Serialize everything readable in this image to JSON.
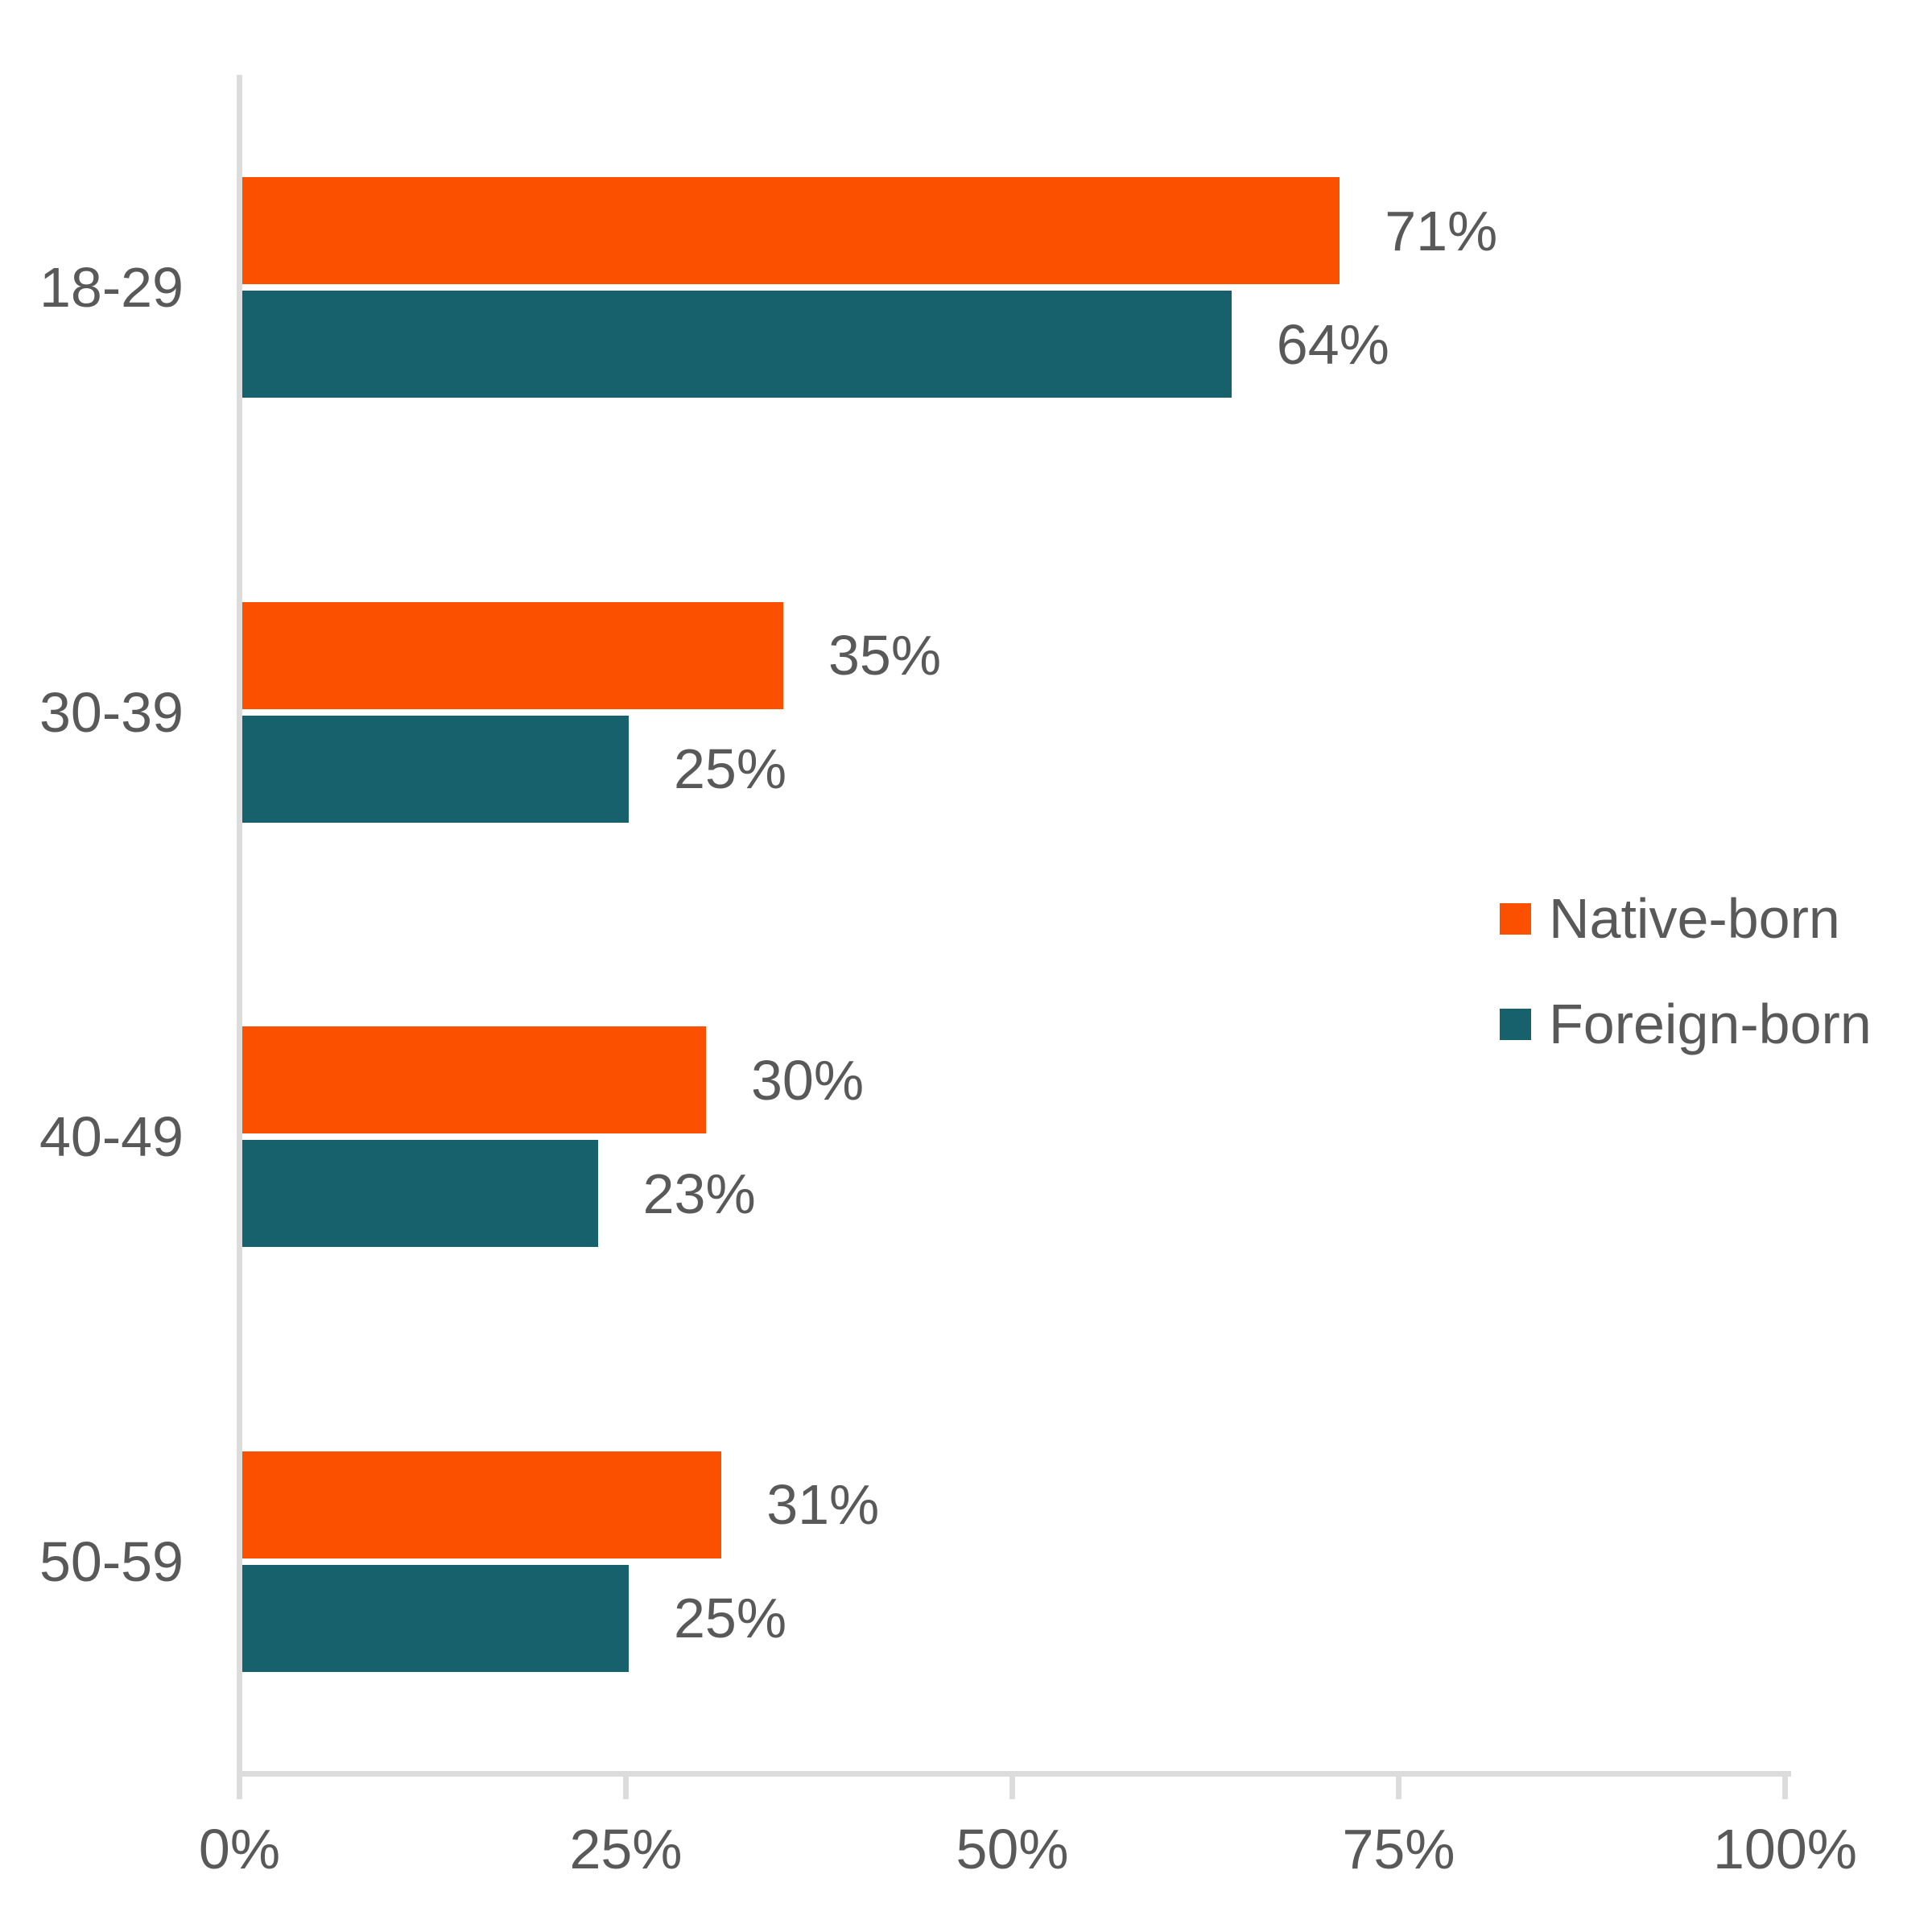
{
  "chart_data": {
    "type": "bar",
    "orientation": "horizontal",
    "categories": [
      "18-29",
      "30-39",
      "40-49",
      "50-59"
    ],
    "series": [
      {
        "name": "Native-born",
        "color": "#FA5000",
        "values": [
          71,
          35,
          30,
          31
        ],
        "labels": [
          "71%",
          "35%",
          "30%",
          "31%"
        ]
      },
      {
        "name": "Foreign-born",
        "color": "#16616B",
        "values": [
          64,
          25,
          23,
          25
        ],
        "labels": [
          "64%",
          "25%",
          "23%",
          "25%"
        ]
      }
    ],
    "x_axis": {
      "min": 0,
      "max": 100,
      "tick_values": [
        0,
        25,
        50,
        75,
        100
      ],
      "tick_labels": [
        "0%",
        "25%",
        "50%",
        "75%",
        "100%"
      ]
    },
    "grid": false,
    "legend_position": "right-middle",
    "text_color": "#595959",
    "axis_color": "#DCDCDC"
  }
}
